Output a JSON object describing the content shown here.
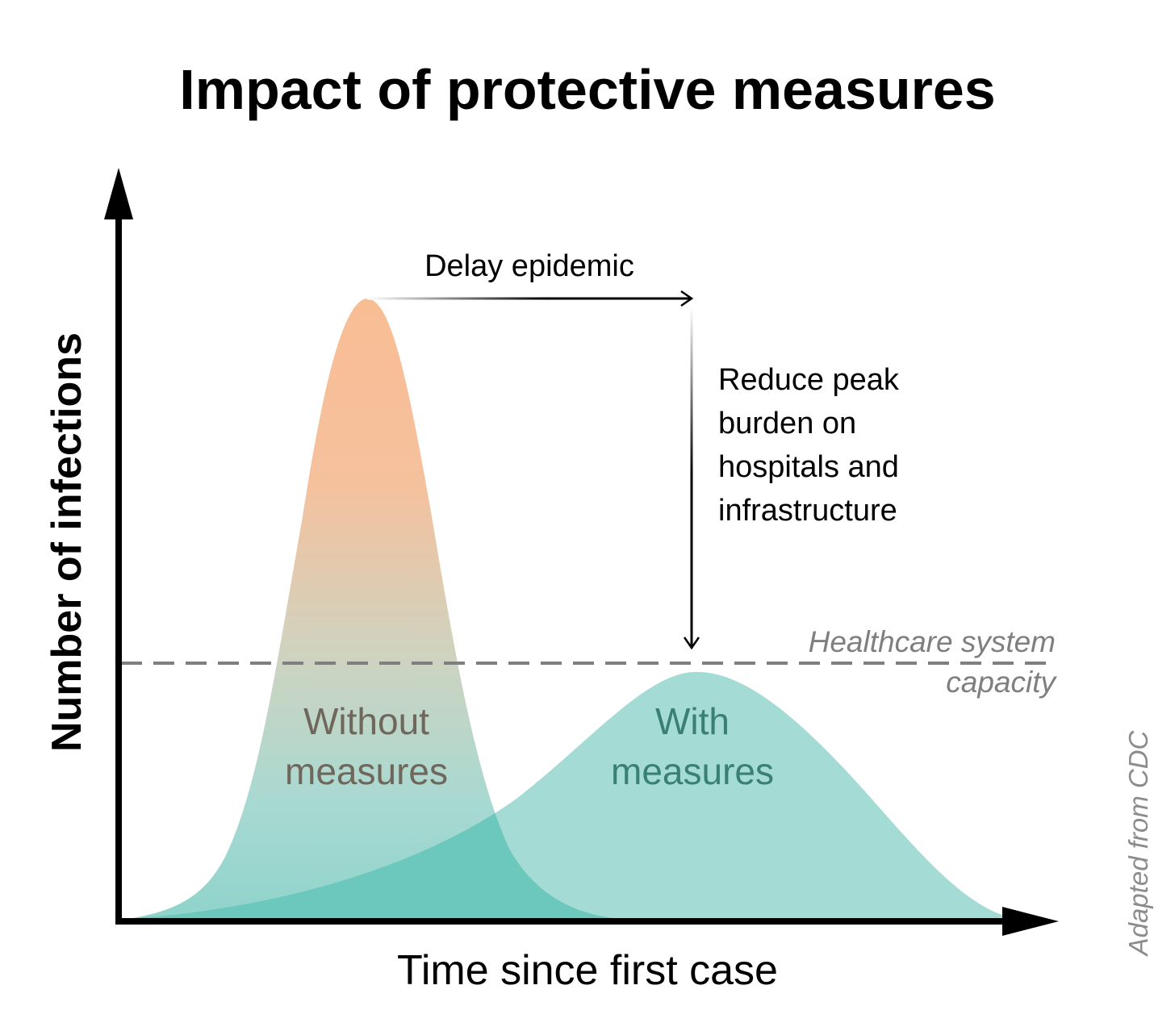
{
  "title": "Impact of protective measures",
  "y_axis_label": "Number of infections",
  "x_axis_label": "Time since first case",
  "curves": {
    "without": {
      "line1": "Without",
      "line2": "measures"
    },
    "with": {
      "line1": "With",
      "line2": "measures"
    }
  },
  "annotations": {
    "delay": "Delay epidemic",
    "reduce": [
      "Reduce peak",
      "burden on",
      "hospitals and",
      "infrastructure"
    ],
    "capacity_line1": "Healthcare system",
    "capacity_line2": "capacity"
  },
  "credit": "Adapted from CDC",
  "colors": {
    "orange_top": "#f9be96",
    "teal_fill": "#9fdad4",
    "teal_overlap": "#6cc6bc",
    "without_label": "#70675c",
    "with_label": "#3a7f74",
    "capacity_line": "#7f7f7f",
    "axis": "#000000"
  }
}
